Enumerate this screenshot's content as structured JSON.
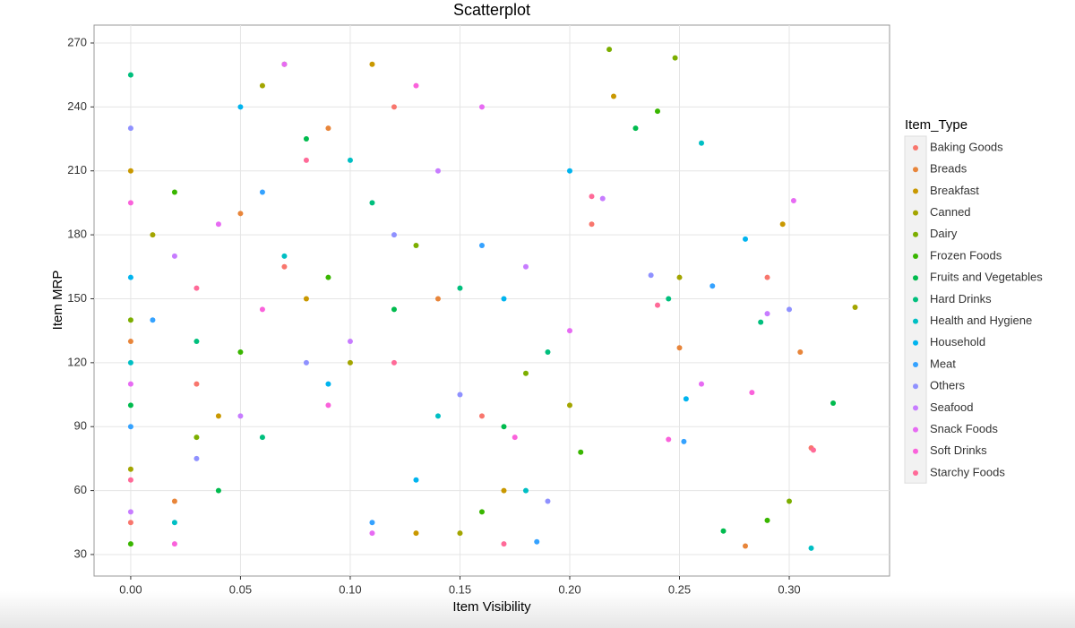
{
  "chart_data": {
    "type": "scatter",
    "title": "Scatterplot",
    "x_label": "Item Visibility",
    "y_label": "Item MRP",
    "legend_title": "Item_Type",
    "xlim": [
      -0.0167,
      0.3457
    ],
    "ylim": [
      19.9,
      278.4
    ],
    "xticks": [
      {
        "value": 0,
        "label": "0.00"
      },
      {
        "value": 0.05,
        "label": "0.05"
      },
      {
        "value": 0.1,
        "label": "0.10"
      },
      {
        "value": 0.15,
        "label": "0.15"
      },
      {
        "value": 0.2,
        "label": "0.20"
      },
      {
        "value": 0.25,
        "label": "0.25"
      },
      {
        "value": 0.3,
        "label": "0.30"
      }
    ],
    "yticks": [
      30,
      60,
      90,
      120,
      150,
      180,
      210,
      240,
      270
    ],
    "grid": true,
    "legend_position": "right",
    "series": [
      {
        "name": "Baking Goods",
        "color": "#F8766D",
        "x": [
          0,
          0.03,
          0.07,
          0.12,
          0.16,
          0.21,
          0.29,
          0.31
        ],
        "values": [
          45,
          110,
          165,
          240,
          95,
          185,
          160,
          80
        ]
      },
      {
        "name": "Breads",
        "color": "#E8853A",
        "x": [
          0,
          0.02,
          0.05,
          0.09,
          0.14,
          0.25,
          0.28,
          0.305
        ],
        "values": [
          130,
          55,
          190,
          230,
          150,
          127,
          34,
          125
        ]
      },
      {
        "name": "Breakfast",
        "color": "#C99800",
        "x": [
          0,
          0.04,
          0.08,
          0.11,
          0.17,
          0.22,
          0.297,
          0.13
        ],
        "values": [
          210,
          95,
          150,
          260,
          60,
          245,
          185,
          40
        ]
      },
      {
        "name": "Canned",
        "color": "#A3A500",
        "x": [
          0,
          0.01,
          0.06,
          0.1,
          0.15,
          0.2,
          0.25,
          0.33
        ],
        "values": [
          70,
          180,
          250,
          120,
          40,
          100,
          160,
          146
        ]
      },
      {
        "name": "Dairy",
        "color": "#7CAE00",
        "x": [
          0,
          0.03,
          0.07,
          0.13,
          0.18,
          0.218,
          0.248,
          0.3
        ],
        "values": [
          140,
          85,
          260,
          175,
          115,
          267,
          263,
          55
        ]
      },
      {
        "name": "Frozen Foods",
        "color": "#39B600",
        "x": [
          0,
          0.02,
          0.05,
          0.09,
          0.16,
          0.205,
          0.24,
          0.29
        ],
        "values": [
          35,
          200,
          125,
          160,
          50,
          78,
          238,
          46
        ]
      },
      {
        "name": "Fruits and Vegetables",
        "color": "#00BB4E",
        "x": [
          0,
          0.04,
          0.08,
          0.12,
          0.17,
          0.23,
          0.27,
          0.32
        ],
        "values": [
          100,
          60,
          225,
          145,
          90,
          230,
          41,
          101
        ]
      },
      {
        "name": "Hard Drinks",
        "color": "#00BF7D",
        "x": [
          0,
          0.03,
          0.06,
          0.11,
          0.15,
          0.19,
          0.245,
          0.287
        ],
        "values": [
          255,
          130,
          85,
          195,
          155,
          125,
          150,
          139
        ]
      },
      {
        "name": "Health and Hygiene",
        "color": "#00BFC4",
        "x": [
          0,
          0.02,
          0.07,
          0.1,
          0.14,
          0.18,
          0.26,
          0.31
        ],
        "values": [
          120,
          45,
          170,
          215,
          95,
          60,
          223,
          33
        ]
      },
      {
        "name": "Household",
        "color": "#00B4EF",
        "x": [
          0,
          0.05,
          0.09,
          0.13,
          0.17,
          0.2,
          0.28,
          0.253
        ],
        "values": [
          160,
          240,
          110,
          65,
          150,
          210,
          178,
          103
        ]
      },
      {
        "name": "Meat",
        "color": "#35A2FF",
        "x": [
          0,
          0.01,
          0.06,
          0.11,
          0.16,
          0.185,
          0.252,
          0.265
        ],
        "values": [
          90,
          140,
          200,
          45,
          175,
          36,
          83,
          156
        ]
      },
      {
        "name": "Others",
        "color": "#8F91FF",
        "x": [
          0,
          0.03,
          0.08,
          0.12,
          0.15,
          0.19,
          0.237,
          0.3
        ],
        "values": [
          230,
          75,
          120,
          180,
          105,
          55,
          161,
          145
        ]
      },
      {
        "name": "Seafood",
        "color": "#C77CFF",
        "x": [
          0,
          0.02,
          0.05,
          0.1,
          0.14,
          0.18,
          0.215,
          0.29
        ],
        "values": [
          50,
          170,
          95,
          130,
          210,
          165,
          197,
          143
        ]
      },
      {
        "name": "Snack Foods",
        "color": "#E76BF3",
        "x": [
          0,
          0.04,
          0.07,
          0.11,
          0.16,
          0.2,
          0.26,
          0.302
        ],
        "values": [
          110,
          185,
          260,
          40,
          240,
          135,
          110,
          196
        ]
      },
      {
        "name": "Soft Drinks",
        "color": "#FA62DB",
        "x": [
          0,
          0.02,
          0.06,
          0.09,
          0.13,
          0.175,
          0.245,
          0.283
        ],
        "values": [
          195,
          35,
          145,
          100,
          250,
          85,
          84,
          106
        ]
      },
      {
        "name": "Starchy Foods",
        "color": "#FF6A98",
        "x": [
          0,
          0.03,
          0.08,
          0.12,
          0.17,
          0.21,
          0.24,
          0.311
        ],
        "values": [
          65,
          155,
          215,
          120,
          35,
          198,
          147,
          79
        ]
      }
    ]
  }
}
